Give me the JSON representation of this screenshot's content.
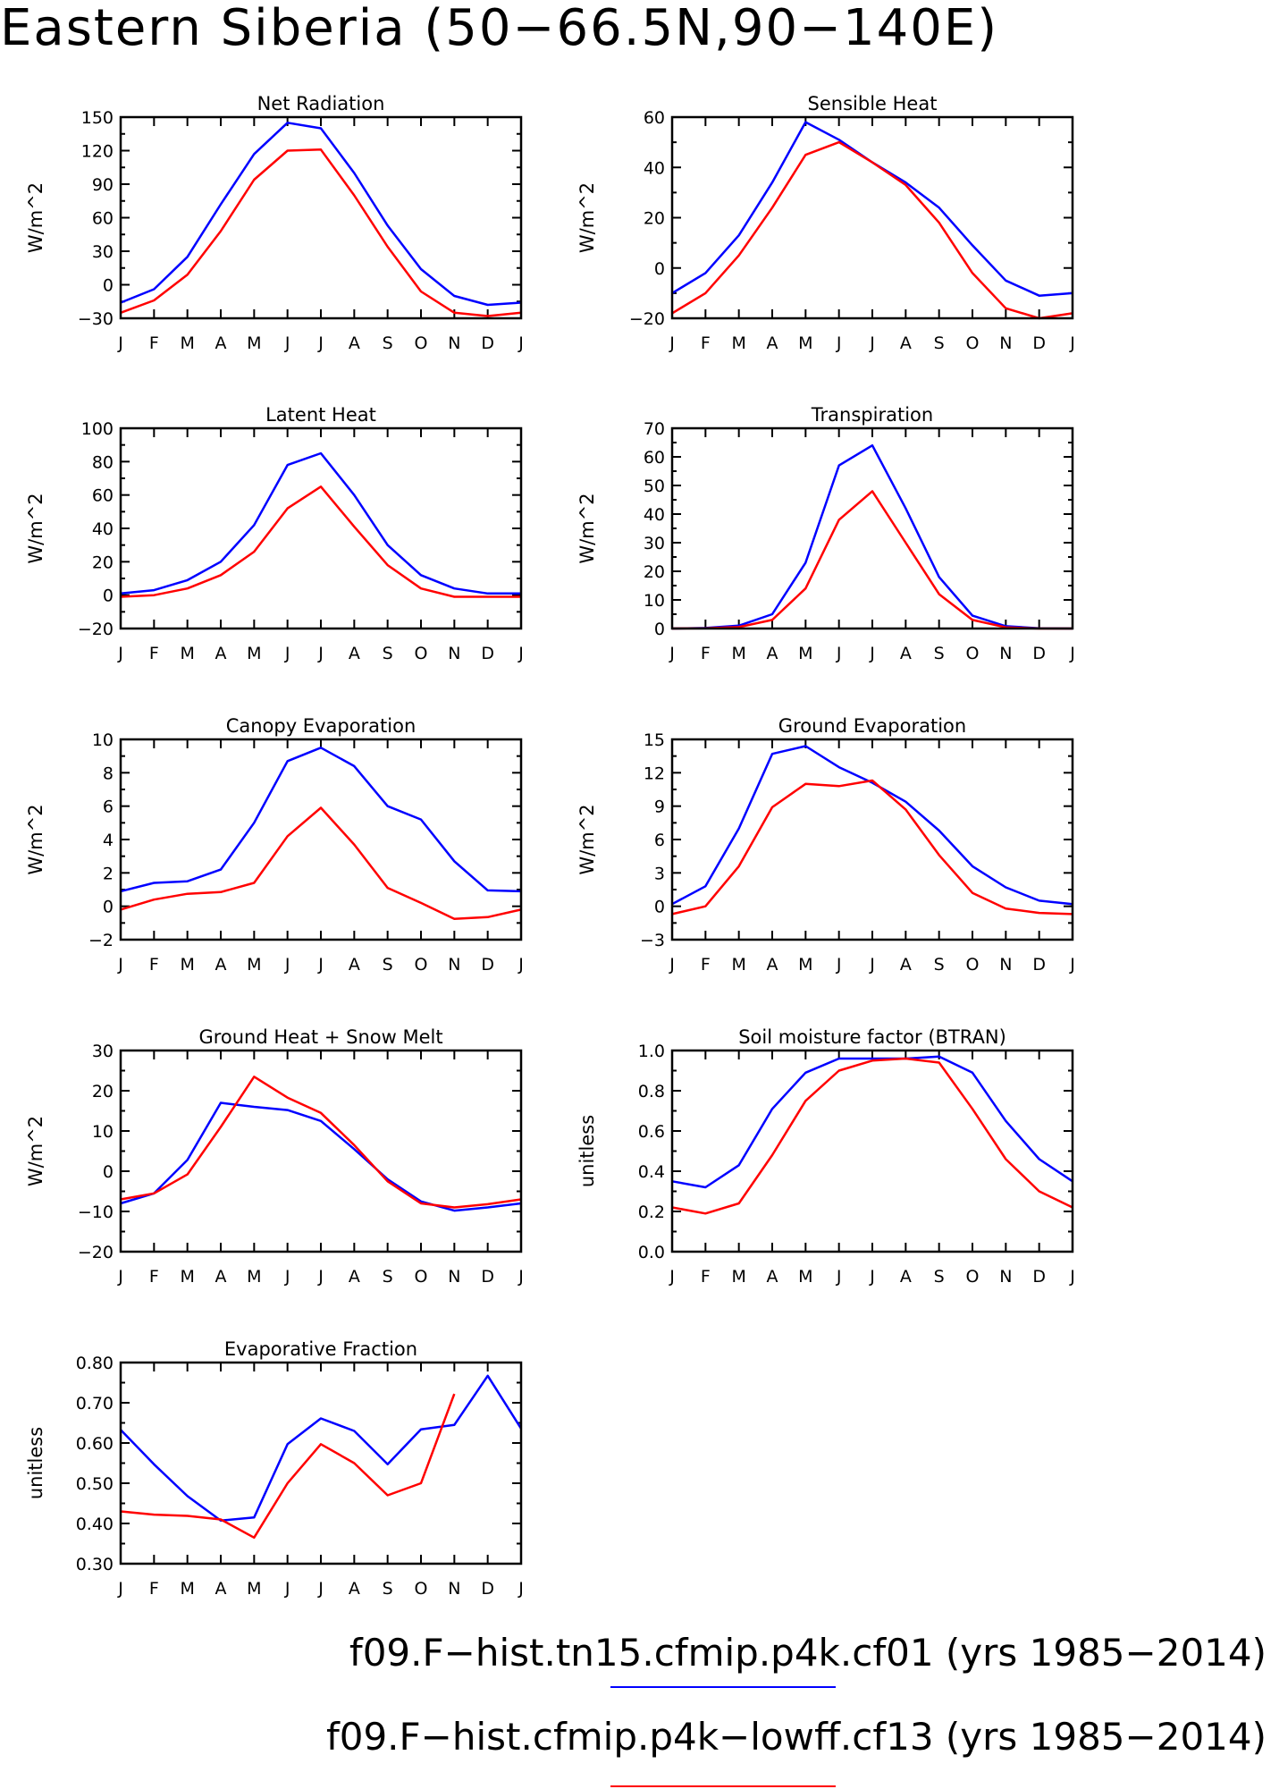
{
  "title": "Eastern Siberia (50−66.5N,90−140E)",
  "colors": {
    "series1": "#0000ff",
    "series2": "#ff0000",
    "axis": "#000000"
  },
  "legend": [
    {
      "label": "f09.F−hist.tn15.cfmip.p4k.cf01 (yrs 1985−2014)",
      "color": "#0000ff"
    },
    {
      "label": "f09.F−hist.cfmip.p4k−lowff.cf13 (yrs 1985−2014)",
      "color": "#ff0000"
    }
  ],
  "chart_data": [
    {
      "type": "line",
      "title": "Net Radiation",
      "ylabel": "W/m^2",
      "categories": [
        "J",
        "F",
        "M",
        "A",
        "M",
        "J",
        "J",
        "A",
        "S",
        "O",
        "N",
        "D",
        "J"
      ],
      "ylim": [
        -30,
        150
      ],
      "yticks": [
        -30,
        0,
        30,
        60,
        90,
        120,
        150
      ],
      "ytick_labels": [
        "−30",
        "0",
        "30",
        "60",
        "90",
        "120",
        "150"
      ],
      "series": [
        {
          "values": [
            -16,
            -4,
            25,
            72,
            117,
            145,
            140,
            100,
            53,
            14,
            -10,
            -18,
            -16
          ]
        },
        {
          "values": [
            -25,
            -14,
            9,
            48,
            94,
            120,
            121,
            80,
            34,
            -6,
            -25,
            -28,
            -25
          ]
        }
      ]
    },
    {
      "type": "line",
      "title": "Sensible Heat",
      "ylabel": "W/m^2",
      "categories": [
        "J",
        "F",
        "M",
        "A",
        "M",
        "J",
        "J",
        "A",
        "S",
        "O",
        "N",
        "D",
        "J"
      ],
      "ylim": [
        -20,
        60
      ],
      "yticks": [
        -20,
        0,
        20,
        40,
        60
      ],
      "ytick_labels": [
        "−20",
        "0",
        "20",
        "40",
        "60"
      ],
      "series": [
        {
          "values": [
            -10,
            -2,
            13,
            34,
            58,
            51,
            42,
            34,
            24,
            9,
            -5,
            -11,
            -10
          ]
        },
        {
          "values": [
            -18,
            -10,
            5,
            24,
            45,
            50,
            42,
            33,
            18,
            -2,
            -16,
            -20,
            -18
          ]
        }
      ]
    },
    {
      "type": "line",
      "title": "Latent Heat",
      "ylabel": "W/m^2",
      "categories": [
        "J",
        "F",
        "M",
        "A",
        "M",
        "J",
        "J",
        "A",
        "S",
        "O",
        "N",
        "D",
        "J"
      ],
      "ylim": [
        -20,
        100
      ],
      "yticks": [
        -20,
        0,
        20,
        40,
        60,
        80,
        100
      ],
      "ytick_labels": [
        "−20",
        "0",
        "20",
        "40",
        "60",
        "80",
        "100"
      ],
      "series": [
        {
          "values": [
            1,
            3,
            9,
            20,
            42,
            78,
            85,
            60,
            30,
            12,
            4,
            1,
            1
          ]
        },
        {
          "values": [
            -1,
            0,
            4,
            12,
            26,
            52,
            65,
            41,
            18,
            4,
            -1,
            -1,
            -1
          ]
        }
      ]
    },
    {
      "type": "line",
      "title": "Transpiration",
      "ylabel": "W/m^2",
      "categories": [
        "J",
        "F",
        "M",
        "A",
        "M",
        "J",
        "J",
        "A",
        "S",
        "O",
        "N",
        "D",
        "J"
      ],
      "ylim": [
        0,
        70
      ],
      "yticks": [
        0,
        10,
        20,
        30,
        40,
        50,
        60,
        70
      ],
      "ytick_labels": [
        "0",
        "10",
        "20",
        "30",
        "40",
        "50",
        "60",
        "70"
      ],
      "series": [
        {
          "values": [
            0,
            0.2,
            1,
            5,
            23,
            57,
            64,
            42,
            18,
            4.5,
            0.8,
            0.1,
            0
          ]
        },
        {
          "values": [
            0,
            0.1,
            0.5,
            3,
            14,
            38,
            48,
            30,
            12,
            3,
            0.4,
            0,
            0
          ]
        }
      ]
    },
    {
      "type": "line",
      "title": "Canopy Evaporation",
      "ylabel": "W/m^2",
      "categories": [
        "J",
        "F",
        "M",
        "A",
        "M",
        "J",
        "J",
        "A",
        "S",
        "O",
        "N",
        "D",
        "J"
      ],
      "ylim": [
        -2,
        10
      ],
      "yticks": [
        -2,
        0,
        2,
        4,
        6,
        8,
        10
      ],
      "ytick_labels": [
        "−2",
        "0",
        "2",
        "4",
        "6",
        "8",
        "10"
      ],
      "series": [
        {
          "values": [
            0.9,
            1.4,
            1.5,
            2.2,
            5.0,
            8.7,
            9.5,
            8.4,
            6.0,
            5.2,
            2.7,
            0.95,
            0.9
          ]
        },
        {
          "values": [
            -0.2,
            0.4,
            0.75,
            0.85,
            1.4,
            4.2,
            5.9,
            3.7,
            1.1,
            0.2,
            -0.75,
            -0.65,
            -0.2
          ]
        }
      ]
    },
    {
      "type": "line",
      "title": "Ground Evaporation",
      "ylabel": "W/m^2",
      "categories": [
        "J",
        "F",
        "M",
        "A",
        "M",
        "J",
        "J",
        "A",
        "S",
        "O",
        "N",
        "D",
        "J"
      ],
      "ylim": [
        -3,
        15
      ],
      "yticks": [
        -3,
        0,
        3,
        6,
        9,
        12,
        15
      ],
      "ytick_labels": [
        "−3",
        "0",
        "3",
        "6",
        "9",
        "12",
        "15"
      ],
      "series": [
        {
          "values": [
            0.2,
            1.8,
            7.0,
            13.7,
            14.4,
            12.5,
            11.1,
            9.4,
            6.8,
            3.6,
            1.7,
            0.5,
            0.2
          ]
        },
        {
          "values": [
            -0.7,
            0,
            3.6,
            8.9,
            11.0,
            10.8,
            11.3,
            8.7,
            4.6,
            1.2,
            -0.2,
            -0.6,
            -0.7
          ]
        }
      ]
    },
    {
      "type": "line",
      "title": "Ground Heat + Snow Melt",
      "ylabel": "W/m^2",
      "categories": [
        "J",
        "F",
        "M",
        "A",
        "M",
        "J",
        "J",
        "A",
        "S",
        "O",
        "N",
        "D",
        "J"
      ],
      "ylim": [
        -20,
        30
      ],
      "yticks": [
        -20,
        -10,
        0,
        10,
        20,
        30
      ],
      "ytick_labels": [
        "−20",
        "−10",
        "0",
        "10",
        "20",
        "30"
      ],
      "series": [
        {
          "values": [
            -8,
            -5.5,
            2.8,
            17,
            16,
            15.2,
            12.5,
            5.5,
            -2,
            -7.5,
            -9.8,
            -9,
            -8
          ]
        },
        {
          "values": [
            -7,
            -5.5,
            -0.8,
            11,
            23.5,
            18.3,
            14.5,
            6.5,
            -2.5,
            -8,
            -9,
            -8.2,
            -7
          ]
        }
      ]
    },
    {
      "type": "line",
      "title": "Soil moisture factor (BTRAN)",
      "ylabel": "unitless",
      "categories": [
        "J",
        "F",
        "M",
        "A",
        "M",
        "J",
        "J",
        "A",
        "S",
        "O",
        "N",
        "D",
        "J"
      ],
      "ylim": [
        0,
        1
      ],
      "yticks": [
        0,
        0.2,
        0.4,
        0.6,
        0.8,
        1.0
      ],
      "ytick_labels": [
        "0.0",
        "0.2",
        "0.4",
        "0.6",
        "0.8",
        "1.0"
      ],
      "series": [
        {
          "values": [
            0.35,
            0.32,
            0.43,
            0.71,
            0.89,
            0.96,
            0.96,
            0.96,
            0.97,
            0.89,
            0.65,
            0.46,
            0.35
          ]
        },
        {
          "values": [
            0.22,
            0.19,
            0.24,
            0.48,
            0.75,
            0.9,
            0.95,
            0.96,
            0.94,
            0.71,
            0.46,
            0.3,
            0.22
          ]
        }
      ]
    },
    {
      "type": "line",
      "title": "Evaporative Fraction",
      "ylabel": "unitless",
      "categories": [
        "J",
        "F",
        "M",
        "A",
        "M",
        "J",
        "J",
        "A",
        "S",
        "O",
        "N",
        "D",
        "J"
      ],
      "ylim": [
        0.3,
        0.8
      ],
      "yticks": [
        0.3,
        0.4,
        0.5,
        0.6,
        0.7,
        0.8
      ],
      "ytick_labels": [
        "0.30",
        "0.40",
        "0.50",
        "0.60",
        "0.70",
        "0.80"
      ],
      "series": [
        {
          "values": [
            0.633,
            0.547,
            0.468,
            0.407,
            0.415,
            0.597,
            0.661,
            0.63,
            0.547,
            0.634,
            0.645,
            0.767,
            0.636
          ]
        },
        {
          "values": [
            0.43,
            0.422,
            0.419,
            0.41,
            0.365,
            0.5,
            0.597,
            0.55,
            0.47,
            0.5,
            0.722,
            null,
            null
          ]
        }
      ]
    }
  ]
}
